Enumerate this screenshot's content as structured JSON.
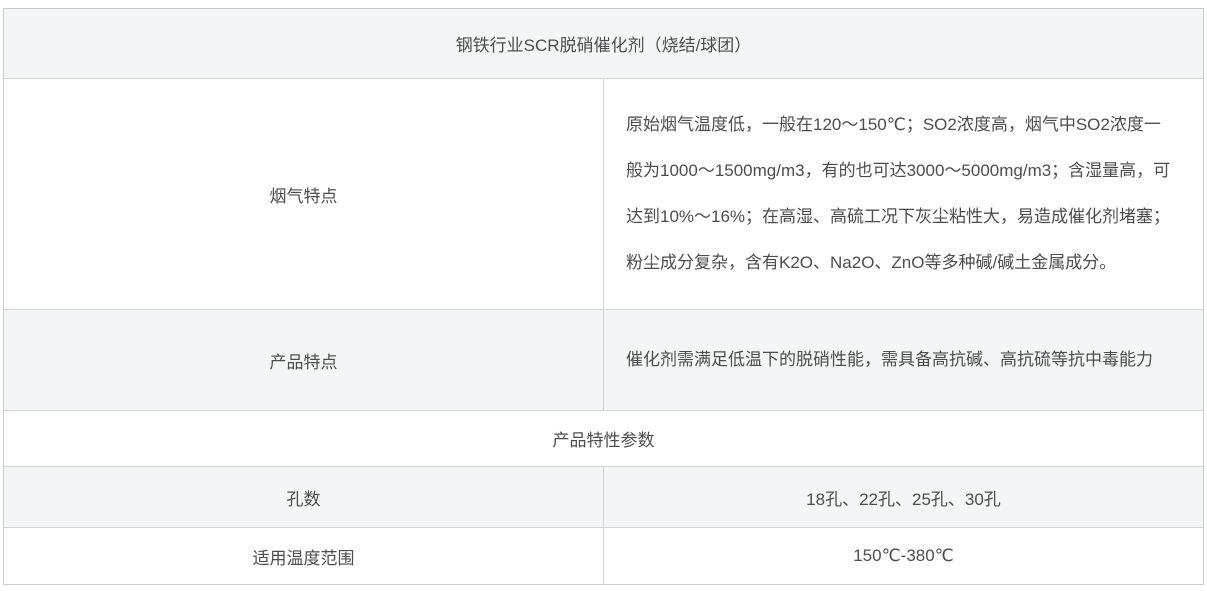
{
  "table": {
    "title": "钢铁行业SCR脱硝催化剂（烧结/球团）",
    "feature_rows": [
      {
        "label": "烟气特点",
        "content": "原始烟气温度低，一般在120～150℃；SO2浓度高，烟气中SO2浓度一般为1000～1500mg/m3，有的也可达3000～5000mg/m3；含湿量高，可达到10%～16%；在高湿、高硫工况下灰尘粘性大，易造成催化剂堵塞；粉尘成分复杂，含有K2O、Na2O、ZnO等多种碱/碱土金属成分。"
      },
      {
        "label": "产品特点",
        "content": "催化剂需满足低温下的脱硝性能，需具备高抗碱、高抗硫等抗中毒能力"
      }
    ],
    "section_header": "产品特性参数",
    "param_rows": [
      {
        "label": "孔数",
        "value": "18孔、22孔、25孔、30孔"
      },
      {
        "label": "适用温度范围",
        "value": "150℃-380℃"
      }
    ],
    "colors": {
      "stripe_background": "#f4f5f7",
      "row_background": "#ffffff",
      "border": "#cccccc",
      "text": "#4d4d4d"
    }
  }
}
